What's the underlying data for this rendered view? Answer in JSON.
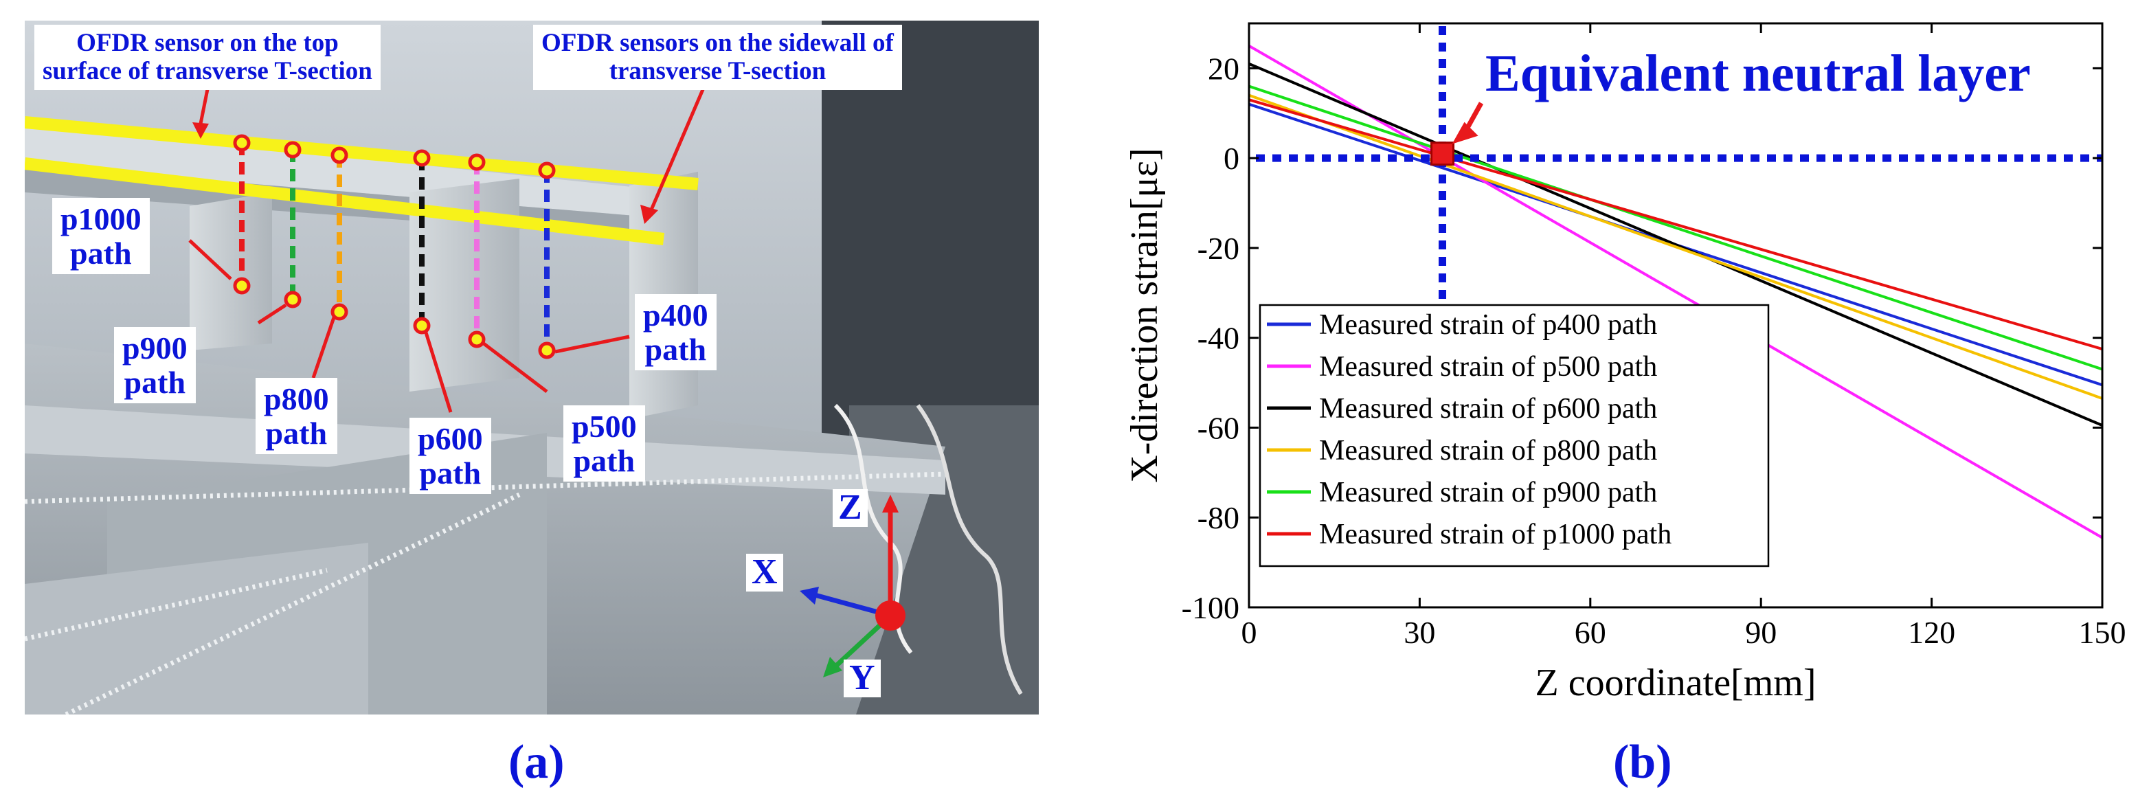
{
  "panel_a": {
    "label": "(a)",
    "top_sensor_label": "OFDR sensor on the top surface of transverse T-section",
    "top_sensor_label_line1": "OFDR sensor on the top",
    "top_sensor_label_line2": "surface of transverse T-section",
    "sidewall_sensor_label_line1": "OFDR sensors on the sidewall of",
    "sidewall_sensor_label_line2": "transverse T-section",
    "paths": [
      {
        "name": "p1000",
        "word": "path",
        "color": "#e8191c"
      },
      {
        "name": "p900",
        "word": "path",
        "color": "#1fa83a"
      },
      {
        "name": "p800",
        "word": "path",
        "color": "#f4a40e"
      },
      {
        "name": "p600",
        "word": "path",
        "color": "#111111"
      },
      {
        "name": "p500",
        "word": "path",
        "color": "#ee6fe0"
      },
      {
        "name": "p400",
        "word": "path",
        "color": "#1a2bd8"
      }
    ],
    "axes": {
      "z": "Z",
      "x": "X",
      "y": "Y"
    },
    "colors": {
      "sensor_fiber": "#f7f21a",
      "marker": "#e8191c",
      "annotation_text": "#0a14d8"
    }
  },
  "panel_b": {
    "label": "(b)",
    "annotation": "Equivalent neutral layer",
    "colors": {
      "neutral_layer_lines": "#0a14d8",
      "neutral_point": "#e8191c"
    }
  },
  "chart_data": {
    "type": "line",
    "xlabel": "Z coordinate[mm]",
    "ylabel": "X-direction strain[με]",
    "xlim": [
      0,
      150
    ],
    "ylim": [
      -100,
      30
    ],
    "xticks": [
      0,
      30,
      60,
      90,
      120,
      150
    ],
    "yticks": [
      -100,
      -80,
      -60,
      -40,
      -20,
      0,
      20
    ],
    "grid": false,
    "legend_position": "bottom-left",
    "neutral_point": {
      "x": 34,
      "y": 1
    },
    "neutral_hline_y": 0,
    "neutral_vline_x": 34,
    "series": [
      {
        "name": "Measured strain of p400 path",
        "color": "#1a2bd8",
        "x": [
          0,
          150
        ],
        "y": [
          12,
          -50.5
        ]
      },
      {
        "name": "Measured strain of p500 path",
        "color": "#ff22ff",
        "x": [
          0,
          150
        ],
        "y": [
          25,
          -84.5
        ]
      },
      {
        "name": "Measured strain of p600 path",
        "color": "#000000",
        "x": [
          0,
          150
        ],
        "y": [
          21,
          -59.5
        ]
      },
      {
        "name": "Measured strain of p800 path",
        "color": "#f5c000",
        "x": [
          0,
          150
        ],
        "y": [
          14,
          -53.5
        ]
      },
      {
        "name": "Measured strain of p900 path",
        "color": "#18e018",
        "x": [
          0,
          150
        ],
        "y": [
          16,
          -47
        ]
      },
      {
        "name": "Measured strain of p1000 path",
        "color": "#e81010",
        "x": [
          0,
          150
        ],
        "y": [
          13,
          -42.5
        ]
      }
    ]
  }
}
